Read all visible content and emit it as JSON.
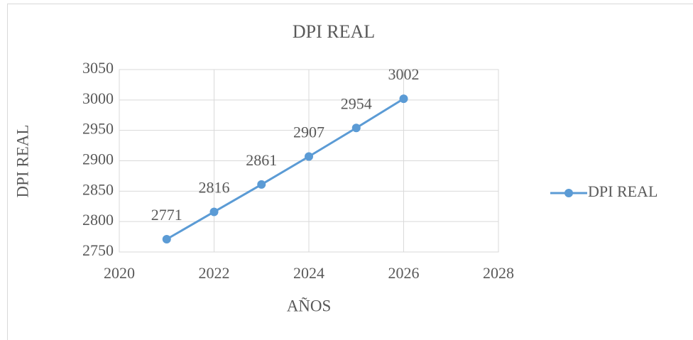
{
  "chart_data": {
    "type": "line",
    "title": "DPI REAL",
    "x_label": "AÑOS",
    "y_label": "DPI REAL",
    "x": [
      2021,
      2022,
      2023,
      2024,
      2025,
      2026
    ],
    "series": [
      {
        "name": "DPI REAL",
        "color": "#5b9bd5",
        "values": [
          2771,
          2816,
          2861,
          2907,
          2954,
          3002
        ]
      }
    ],
    "xlim": [
      2020,
      2028
    ],
    "xticks": [
      2020,
      2022,
      2024,
      2026,
      2028
    ],
    "ylim": [
      2750,
      3050
    ],
    "yticks": [
      2750,
      2800,
      2850,
      2900,
      2950,
      3000,
      3050
    ],
    "grid": true,
    "legend": "right",
    "data_labels": true
  }
}
